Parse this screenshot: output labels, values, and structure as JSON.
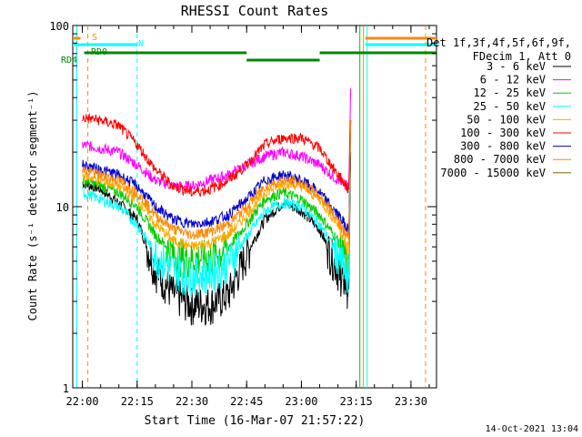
{
  "chart_data": {
    "type": "line",
    "title": "RHESSI Count Rates",
    "xlabel": "Start Time (16-Mar-07 21:57:22)",
    "ylabel": "Count Rate (s⁻¹ detector segment⁻¹)",
    "y_scale": "log",
    "ylim": [
      1,
      100
    ],
    "xlim": [
      "21:57:22",
      "23:37:00"
    ],
    "x_ticks": [
      "22:00",
      "22:15",
      "22:30",
      "22:45",
      "23:00",
      "23:15",
      "23:30"
    ],
    "y_ticks": [
      "1",
      "10",
      "100"
    ],
    "legend_header": [
      "Det 1f,3f,4f,5f,6f,9f,",
      "FDecim 1, Att 0"
    ],
    "legend_position": "right",
    "footer_date": "14-Oct-2021 13:04",
    "x_times": [
      "22:00",
      "22:05",
      "22:10",
      "22:15",
      "22:20",
      "22:25",
      "22:30",
      "22:35",
      "22:40",
      "22:45",
      "22:50",
      "22:55",
      "23:00",
      "23:05",
      "23:10",
      "23:13"
    ],
    "series": [
      {
        "name": "3 - 6 keV",
        "color": "#000000",
        "values": [
          13.5,
          12.5,
          10.5,
          8.5,
          4.5,
          3.3,
          2.9,
          2.9,
          3.3,
          5.5,
          8.5,
          10.5,
          9.5,
          7.5,
          4.5,
          3.5
        ]
      },
      {
        "name": "6 - 12 keV",
        "color": "#ff00ff",
        "values": [
          22,
          21,
          20,
          17,
          14,
          13,
          13,
          14,
          15,
          17,
          19,
          20,
          19,
          17,
          14,
          13
        ]
      },
      {
        "name": "12 - 25 keV",
        "color": "#00cc00",
        "values": [
          14,
          13,
          12,
          10,
          7,
          5.5,
          5.2,
          5.3,
          6,
          8,
          11,
          12,
          11,
          9,
          6.5,
          4.5
        ]
      },
      {
        "name": "25 - 50 keV",
        "color": "#00ffff",
        "values": [
          12,
          11,
          10,
          8,
          5.5,
          4.5,
          4.2,
          4.3,
          5,
          6.8,
          9.5,
          10.5,
          10,
          8,
          5.5,
          4
        ]
      },
      {
        "name": "50 - 100 keV",
        "color": "#ffaa00",
        "values": [
          15,
          14,
          13,
          11,
          8,
          6.5,
          6,
          6.3,
          7,
          9,
          12,
          13.5,
          13,
          11,
          8,
          5.5
        ]
      },
      {
        "name": "100 - 300 keV",
        "color": "#ff0000",
        "values": [
          31,
          30,
          28,
          22,
          16,
          13,
          12,
          12.5,
          14,
          17,
          22,
          24,
          24,
          21,
          15,
          12.5
        ]
      },
      {
        "name": "300 - 800 keV",
        "color": "#0000cc",
        "values": [
          17,
          16,
          15,
          13,
          10,
          8.5,
          8,
          8.3,
          9,
          11,
          14,
          15,
          14,
          12,
          9,
          7.5
        ]
      },
      {
        "name": "800 - 7000 keV",
        "color": "#ff8800",
        "values": [
          16,
          15,
          14,
          12,
          9,
          7.5,
          7,
          7.3,
          8,
          10,
          13,
          14,
          13.5,
          11.5,
          8.5,
          6.5
        ]
      },
      {
        "name": "7000 - 15000 keV",
        "color": "#7a6a00",
        "values": []
      }
    ],
    "state_bars": [
      {
        "label": "S",
        "color": "#ff8800",
        "segments": [
          [
            "21:57:22",
            "21:59:30"
          ],
          [
            "23:17:30",
            "23:37:00"
          ]
        ]
      },
      {
        "label": "N",
        "color": "#00ffff",
        "segments": [
          [
            "21:57:22",
            "22:15:00"
          ],
          [
            "23:17:30",
            "23:37:00"
          ]
        ]
      },
      {
        "label": "RD0",
        "color": "#008800",
        "segments": [
          [
            "22:00:30",
            "22:15:30"
          ],
          [
            "22:15:30",
            "22:45:00"
          ],
          [
            "22:45:00",
            "23:05:00"
          ],
          [
            "23:05:00",
            "23:37:00"
          ]
        ]
      },
      {
        "label": "RD4",
        "color": "#008800",
        "segments": []
      }
    ],
    "vertical_markers": [
      {
        "time": "21:58:30",
        "color": "#00ffff",
        "style": "solid"
      },
      {
        "time": "22:01:30",
        "color": "#ff8800",
        "style": "dashed"
      },
      {
        "time": "22:15:00",
        "color": "#00ffff",
        "style": "dashed"
      },
      {
        "time": "23:16:00",
        "color": "#00cc00",
        "style": "solid"
      },
      {
        "time": "23:17:00",
        "color": "#ff8800",
        "style": "solid"
      },
      {
        "time": "23:18:00",
        "color": "#00ffff",
        "style": "solid"
      },
      {
        "time": "23:34:00",
        "color": "#ff8800",
        "style": "dashed"
      }
    ]
  }
}
